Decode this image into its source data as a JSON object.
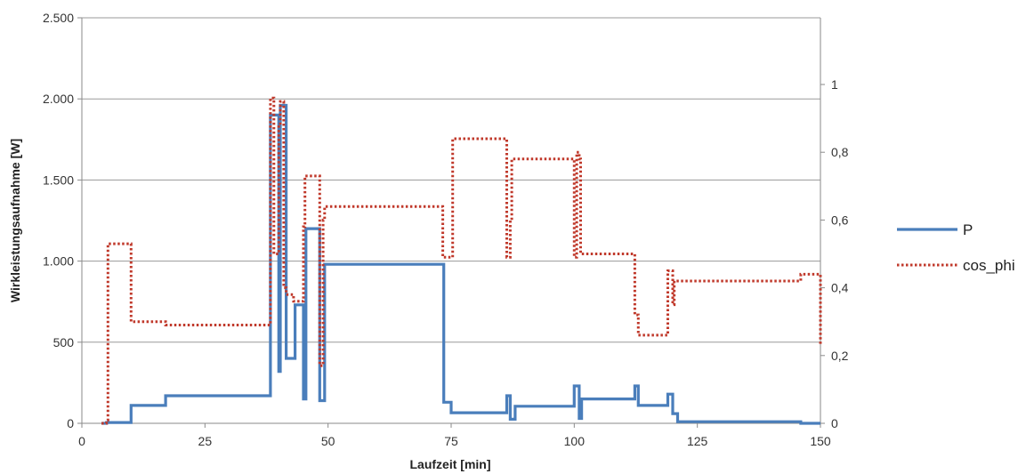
{
  "chart_data": {
    "type": "line",
    "title": "",
    "xlabel": "Laufzeit [min]",
    "ylabel": "Wirkleistungsaufnahme [W]",
    "y2label": "",
    "xlim": [
      0,
      150
    ],
    "ylim": [
      0,
      2500
    ],
    "y2lim": [
      0,
      1.2
    ],
    "xticks": [
      0,
      25,
      50,
      75,
      100,
      125,
      150
    ],
    "xtick_labels": [
      "0",
      "25",
      "50",
      "75",
      "100",
      "125",
      "150"
    ],
    "yticks": [
      0,
      500,
      1000,
      1500,
      2000,
      2500
    ],
    "ytick_labels": [
      "0",
      "500",
      "1.000",
      "1.500",
      "2.000",
      "2.500"
    ],
    "y2ticks": [
      0,
      0.2,
      0.4,
      0.6,
      0.8,
      1
    ],
    "y2tick_labels": [
      "0",
      "0,2",
      "0,4",
      "0,6",
      "0,8",
      "1"
    ],
    "grid": "horizontal",
    "legend_position": "right",
    "series": [
      {
        "name": "P",
        "axis": "left",
        "style": "solid",
        "color": "#4a7ebb",
        "x": [
          4,
          5,
          10,
          17,
          38,
          38.3,
          39,
          40,
          40.3,
          41,
          41.5,
          43,
          43.3,
          44,
          45,
          45.5,
          48,
          48.3,
          49,
          49.3,
          73,
          73.5,
          75,
          86,
          86.3,
          87,
          88,
          99.5,
          100,
          101,
          101.5,
          112,
          112.3,
          113,
          118.5,
          119,
          120,
          121,
          145,
          146,
          150
        ],
        "values": [
          0,
          5,
          110,
          170,
          170,
          1900,
          1900,
          320,
          1960,
          1960,
          400,
          400,
          730,
          730,
          150,
          1200,
          1200,
          140,
          140,
          980,
          980,
          130,
          65,
          65,
          170,
          25,
          105,
          105,
          230,
          30,
          150,
          150,
          230,
          110,
          110,
          180,
          60,
          10,
          10,
          0,
          0
        ]
      },
      {
        "name": "cos_phi",
        "axis": "right",
        "style": "dotted",
        "color": "#c0392b",
        "x": [
          4,
          5,
          5.3,
          10,
          17,
          38,
          38.3,
          38.7,
          39,
          40,
          40.3,
          41,
          41.5,
          43,
          44,
          45,
          45.3,
          48,
          48.3,
          49,
          49.3,
          73,
          73.3,
          75,
          75.3,
          86,
          86.3,
          87,
          87.3,
          99.5,
          100,
          100.5,
          101,
          101.3,
          112,
          112.3,
          113,
          118.5,
          119,
          120,
          120.3,
          121,
          145,
          146,
          150
        ],
        "values": [
          0,
          0.01,
          0.53,
          0.3,
          0.29,
          0.29,
          0.96,
          0.96,
          0.5,
          0.88,
          0.95,
          0.4,
          0.38,
          0.36,
          0.36,
          0.58,
          0.73,
          0.73,
          0.17,
          0.6,
          0.64,
          0.64,
          0.49,
          0.49,
          0.84,
          0.84,
          0.49,
          0.6,
          0.78,
          0.78,
          0.49,
          0.8,
          0.78,
          0.5,
          0.5,
          0.32,
          0.26,
          0.26,
          0.45,
          0.35,
          0.42,
          0.42,
          0.42,
          0.44,
          0.23
        ]
      }
    ]
  }
}
